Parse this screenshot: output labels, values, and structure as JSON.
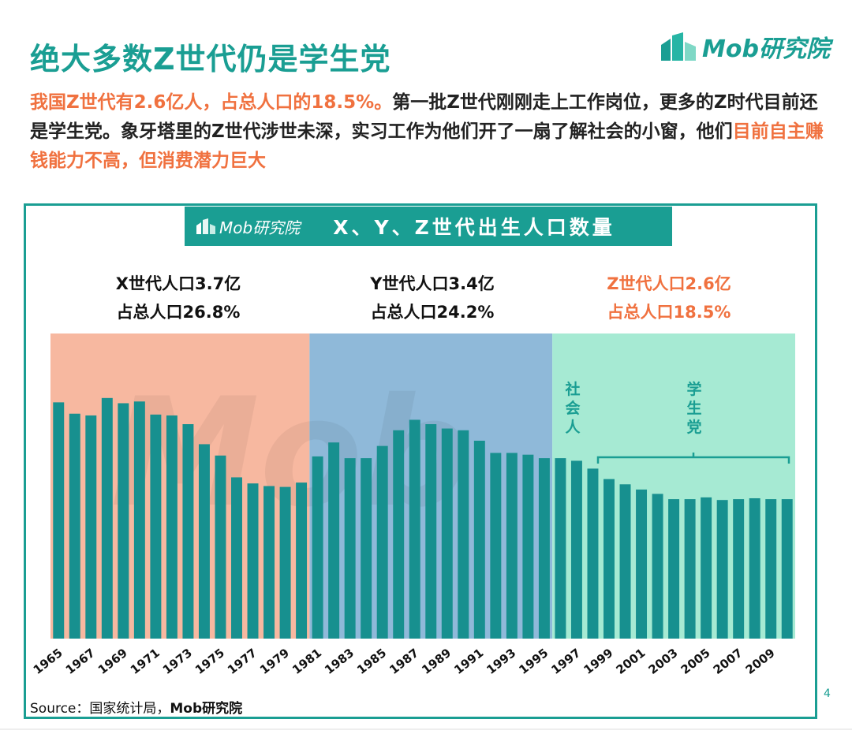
{
  "header": {
    "title": "绝大多数Z世代仍是学生党",
    "logo_text": "Mob研究院",
    "intro_highlight1": "我国Z世代有2.6亿人，占总人口的18.5%。",
    "intro_text1": "第一批Z世代刚刚走上工作岗位，更多的Z时代目前还是学生党。象牙塔里的Z世代涉世未深，实习工作为他们开了一扇了解社会的小窗，他们",
    "intro_highlight2": "目前自主赚钱能力不高，但消费潜力巨大"
  },
  "banner": {
    "logo_text": "Mob研究院",
    "title": "X、Y、Z世代出生人口数量"
  },
  "generations": [
    {
      "line1": "X世代人口3.7亿",
      "line2": "占总人口26.8%",
      "color": "#111111"
    },
    {
      "line1": "Y世代人口3.4亿",
      "line2": "占总人口24.2%",
      "color": "#111111"
    },
    {
      "line1": "Z世代人口2.6亿",
      "line2": "占总人口18.5%",
      "color": "#f0713f"
    }
  ],
  "annotations": {
    "social": "社会人",
    "student": "学生党"
  },
  "source": {
    "label": "Source：国家统计局，",
    "bold": "Mob研究院"
  },
  "page_number": "4",
  "colors": {
    "accent": "#1a9e93",
    "bar": "#17908f",
    "highlight": "#f0713f",
    "x_band": "#f7b8a0",
    "y_band": "#8fb9d9",
    "z_band": "#a6ead3"
  },
  "chart_data": {
    "type": "bar",
    "title": "X、Y、Z世代出生人口数量",
    "x": [
      1965,
      1966,
      1967,
      1968,
      1969,
      1970,
      1971,
      1972,
      1973,
      1974,
      1975,
      1976,
      1977,
      1978,
      1979,
      1980,
      1981,
      1982,
      1983,
      1984,
      1985,
      1986,
      1987,
      1988,
      1989,
      1990,
      1991,
      1992,
      1993,
      1994,
      1995,
      1996,
      1997,
      1998,
      1999,
      2000,
      2001,
      2002,
      2003,
      2004,
      2005,
      2006,
      2007,
      2008,
      2009,
      2010
    ],
    "tick_labels": [
      "1965",
      "1967",
      "1969",
      "1971",
      "1973",
      "1975",
      "1977",
      "1979",
      "1981",
      "1983",
      "1985",
      "1987",
      "1989",
      "1991",
      "1993",
      "1995",
      "1997",
      "1999",
      "2001",
      "2003",
      "2005",
      "2007",
      "2009"
    ],
    "values": [
      2710,
      2580,
      2560,
      2760,
      2700,
      2720,
      2570,
      2560,
      2460,
      2230,
      2100,
      1850,
      1780,
      1750,
      1740,
      1790,
      2090,
      2250,
      2070,
      2070,
      2210,
      2390,
      2510,
      2460,
      2410,
      2390,
      2270,
      2130,
      2130,
      2110,
      2070,
      2070,
      2040,
      1950,
      1830,
      1770,
      1710,
      1660,
      1600,
      1600,
      1620,
      1590,
      1600,
      1610,
      1600,
      1600
    ],
    "bands": [
      {
        "name": "X世代",
        "from": 1965,
        "to": 1980
      },
      {
        "name": "Y世代",
        "from": 1981,
        "to": 1995
      },
      {
        "name": "Z世代",
        "from": 1996,
        "to": 2010
      }
    ],
    "ylim": [
      0,
      3500
    ],
    "grid": false,
    "legend": "none"
  }
}
